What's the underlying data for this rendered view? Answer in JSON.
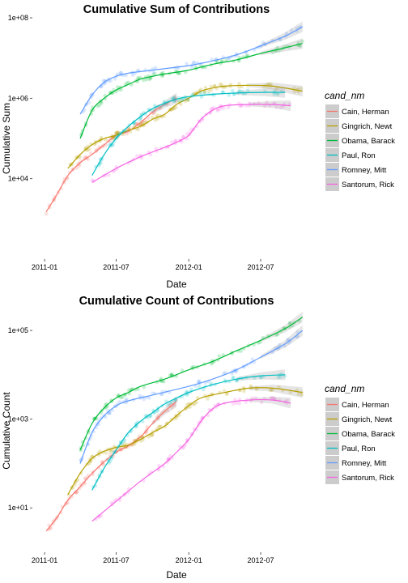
{
  "chart_data": [
    {
      "type": "scatter",
      "title": "Cumulative Sum of Contributions",
      "xlabel": "Date",
      "ylabel": "Cumulative Sum",
      "y_scale": "log10",
      "ylim": [
        100,
        100000000
      ],
      "x_range": [
        "2010-12-01",
        "2012-11-01"
      ],
      "x_ticks": [
        {
          "date": "2011-01-01",
          "label": "2011-01"
        },
        {
          "date": "2011-07-01",
          "label": "2011-07"
        },
        {
          "date": "2012-01-01",
          "label": "2012-01"
        },
        {
          "date": "2012-07-01",
          "label": "2012-07"
        }
      ],
      "y_ticks": [
        {
          "value": 10000,
          "label": "1e+04"
        },
        {
          "value": 1000000,
          "label": "1e+06"
        },
        {
          "value": 100000000,
          "label": "1e+08"
        }
      ],
      "grid": false,
      "smoother": true,
      "legend": {
        "title": "cand_nm",
        "position": "right"
      },
      "series": [
        {
          "name": "Cain, Herman",
          "color": "#f8766d",
          "points": [
            [
              "2011-01-05",
              1500
            ],
            [
              "2011-02-01",
              4000
            ],
            [
              "2011-03-01",
              12000
            ],
            [
              "2011-04-01",
              25000
            ],
            [
              "2011-05-01",
              40000
            ],
            [
              "2011-06-01",
              70000
            ],
            [
              "2011-07-01",
              120000
            ],
            [
              "2011-08-01",
              150000
            ],
            [
              "2011-09-01",
              250000
            ],
            [
              "2011-10-01",
              450000
            ],
            [
              "2011-11-01",
              700000
            ],
            [
              "2011-12-01",
              1000000
            ]
          ]
        },
        {
          "name": "Gingrich, Newt",
          "color": "#b79f00",
          "points": [
            [
              "2011-03-01",
              18000
            ],
            [
              "2011-04-01",
              40000
            ],
            [
              "2011-05-01",
              70000
            ],
            [
              "2011-06-01",
              100000
            ],
            [
              "2011-07-01",
              120000
            ],
            [
              "2011-08-01",
              160000
            ],
            [
              "2011-09-01",
              200000
            ],
            [
              "2011-10-01",
              300000
            ],
            [
              "2011-11-01",
              400000
            ],
            [
              "2011-12-01",
              700000
            ],
            [
              "2012-01-01",
              1000000
            ],
            [
              "2012-02-01",
              1500000
            ],
            [
              "2012-03-01",
              1800000
            ],
            [
              "2012-04-01",
              2000000
            ],
            [
              "2012-06-01",
              2100000
            ],
            [
              "2012-08-01",
              2000000
            ],
            [
              "2012-10-15",
              1500000
            ]
          ]
        },
        {
          "name": "Obama, Barack",
          "color": "#00ba38",
          "points": [
            [
              "2011-04-01",
              100000
            ],
            [
              "2011-05-01",
              500000
            ],
            [
              "2011-06-01",
              1000000
            ],
            [
              "2011-07-01",
              1600000
            ],
            [
              "2011-08-01",
              2200000
            ],
            [
              "2011-09-01",
              3000000
            ],
            [
              "2011-10-01",
              3500000
            ],
            [
              "2011-11-01",
              4000000
            ],
            [
              "2012-01-01",
              5000000
            ],
            [
              "2012-03-01",
              7000000
            ],
            [
              "2012-05-01",
              9000000
            ],
            [
              "2012-07-01",
              13000000
            ],
            [
              "2012-09-01",
              18000000
            ],
            [
              "2012-10-15",
              23000000
            ]
          ]
        },
        {
          "name": "Paul, Ron",
          "color": "#00bfc4",
          "points": [
            [
              "2011-05-01",
              12000
            ],
            [
              "2011-06-01",
              40000
            ],
            [
              "2011-07-01",
              100000
            ],
            [
              "2011-08-01",
              200000
            ],
            [
              "2011-09-01",
              350000
            ],
            [
              "2011-10-01",
              550000
            ],
            [
              "2011-11-01",
              750000
            ],
            [
              "2011-12-01",
              950000
            ],
            [
              "2012-01-01",
              1100000
            ],
            [
              "2012-03-01",
              1250000
            ],
            [
              "2012-05-01",
              1350000
            ],
            [
              "2012-07-01",
              1400000
            ],
            [
              "2012-09-01",
              1400000
            ]
          ]
        },
        {
          "name": "Romney, Mitt",
          "color": "#619cff",
          "points": [
            [
              "2011-04-01",
              400000
            ],
            [
              "2011-05-01",
              1200000
            ],
            [
              "2011-06-01",
              2500000
            ],
            [
              "2011-07-01",
              3500000
            ],
            [
              "2011-08-01",
              4200000
            ],
            [
              "2011-10-01",
              5000000
            ],
            [
              "2012-01-01",
              6500000
            ],
            [
              "2012-03-01",
              8500000
            ],
            [
              "2012-05-01",
              12000000
            ],
            [
              "2012-07-01",
              20000000
            ],
            [
              "2012-09-01",
              35000000
            ],
            [
              "2012-10-15",
              60000000
            ]
          ]
        },
        {
          "name": "Santorum, Rick",
          "color": "#f564e3",
          "points": [
            [
              "2011-05-01",
              8000
            ],
            [
              "2011-07-01",
              18000
            ],
            [
              "2011-09-01",
              35000
            ],
            [
              "2011-11-01",
              60000
            ],
            [
              "2011-12-01",
              80000
            ],
            [
              "2012-01-01",
              120000
            ],
            [
              "2012-02-01",
              300000
            ],
            [
              "2012-03-01",
              500000
            ],
            [
              "2012-04-01",
              650000
            ],
            [
              "2012-06-01",
              700000
            ],
            [
              "2012-08-01",
              700000
            ],
            [
              "2012-09-15",
              650000
            ]
          ]
        }
      ]
    },
    {
      "type": "scatter",
      "title": "Cumulative Count of Contributions",
      "xlabel": "Date",
      "ylabel": "Cumulative Count",
      "y_scale": "log10",
      "ylim": [
        1,
        300000
      ],
      "x_range": [
        "2010-12-01",
        "2012-11-01"
      ],
      "x_ticks": [
        {
          "date": "2011-01-01",
          "label": "2011-01"
        },
        {
          "date": "2011-07-01",
          "label": "2011-07"
        },
        {
          "date": "2012-01-01",
          "label": "2012-01"
        },
        {
          "date": "2012-07-01",
          "label": "2012-07"
        }
      ],
      "y_ticks": [
        {
          "value": 10,
          "label": "1e+01"
        },
        {
          "value": 1000,
          "label": "1e+03"
        },
        {
          "value": 100000,
          "label": "1e+05"
        }
      ],
      "grid": false,
      "smoother": true,
      "legend": {
        "title": "cand_nm",
        "position": "right"
      },
      "series": [
        {
          "name": "Cain, Herman",
          "color": "#f8766d",
          "points": [
            [
              "2011-01-05",
              3
            ],
            [
              "2011-02-01",
              6
            ],
            [
              "2011-03-01",
              15
            ],
            [
              "2011-04-01",
              30
            ],
            [
              "2011-05-01",
              60
            ],
            [
              "2011-06-01",
              110
            ],
            [
              "2011-07-01",
              180
            ],
            [
              "2011-08-01",
              250
            ],
            [
              "2011-09-01",
              400
            ],
            [
              "2011-10-01",
              800
            ],
            [
              "2011-11-01",
              1500
            ],
            [
              "2011-12-01",
              2500
            ]
          ]
        },
        {
          "name": "Gingrich, Newt",
          "color": "#b79f00",
          "points": [
            [
              "2011-03-01",
              20
            ],
            [
              "2011-04-01",
              60
            ],
            [
              "2011-05-01",
              130
            ],
            [
              "2011-06-01",
              190
            ],
            [
              "2011-07-01",
              230
            ],
            [
              "2011-08-01",
              260
            ],
            [
              "2011-09-01",
              350
            ],
            [
              "2011-10-01",
              500
            ],
            [
              "2011-11-01",
              700
            ],
            [
              "2011-12-01",
              1200
            ],
            [
              "2012-01-01",
              2000
            ],
            [
              "2012-02-01",
              3000
            ],
            [
              "2012-04-01",
              4000
            ],
            [
              "2012-06-01",
              5000
            ],
            [
              "2012-08-01",
              5000
            ],
            [
              "2012-10-15",
              4000
            ]
          ]
        },
        {
          "name": "Obama, Barack",
          "color": "#00ba38",
          "points": [
            [
              "2011-04-01",
              200
            ],
            [
              "2011-05-01",
              800
            ],
            [
              "2011-06-01",
              1800
            ],
            [
              "2011-07-01",
              3000
            ],
            [
              "2011-08-01",
              4000
            ],
            [
              "2011-09-01",
              5500
            ],
            [
              "2011-11-01",
              8000
            ],
            [
              "2012-01-01",
              13000
            ],
            [
              "2012-03-01",
              20000
            ],
            [
              "2012-05-01",
              35000
            ],
            [
              "2012-07-01",
              60000
            ],
            [
              "2012-09-01",
              110000
            ],
            [
              "2012-10-15",
              200000
            ]
          ]
        },
        {
          "name": "Paul, Ron",
          "color": "#00bfc4",
          "points": [
            [
              "2011-05-01",
              25
            ],
            [
              "2011-06-01",
              80
            ],
            [
              "2011-07-01",
              200
            ],
            [
              "2011-08-01",
              500
            ],
            [
              "2011-09-01",
              900
            ],
            [
              "2011-10-01",
              1400
            ],
            [
              "2011-11-01",
              2200
            ],
            [
              "2011-12-01",
              3000
            ],
            [
              "2012-01-01",
              4000
            ],
            [
              "2012-03-01",
              6000
            ],
            [
              "2012-05-01",
              8000
            ],
            [
              "2012-07-01",
              9500
            ],
            [
              "2012-09-01",
              10000
            ]
          ]
        },
        {
          "name": "Romney, Mitt",
          "color": "#619cff",
          "points": [
            [
              "2011-04-01",
              100
            ],
            [
              "2011-05-01",
              500
            ],
            [
              "2011-06-01",
              1200
            ],
            [
              "2011-07-01",
              2000
            ],
            [
              "2011-08-01",
              2600
            ],
            [
              "2011-10-01",
              3500
            ],
            [
              "2012-01-01",
              5500
            ],
            [
              "2012-03-01",
              8000
            ],
            [
              "2012-05-01",
              13000
            ],
            [
              "2012-07-01",
              25000
            ],
            [
              "2012-09-01",
              50000
            ],
            [
              "2012-10-15",
              100000
            ]
          ]
        },
        {
          "name": "Santorum, Rick",
          "color": "#f564e3",
          "points": [
            [
              "2011-05-01",
              5
            ],
            [
              "2011-07-01",
              14
            ],
            [
              "2011-09-01",
              40
            ],
            [
              "2011-11-01",
              100
            ],
            [
              "2011-12-01",
              180
            ],
            [
              "2012-01-01",
              350
            ],
            [
              "2012-02-01",
              900
            ],
            [
              "2012-03-01",
              1700
            ],
            [
              "2012-04-01",
              2300
            ],
            [
              "2012-06-01",
              2700
            ],
            [
              "2012-08-01",
              2700
            ],
            [
              "2012-09-15",
              2300
            ]
          ]
        }
      ]
    }
  ]
}
